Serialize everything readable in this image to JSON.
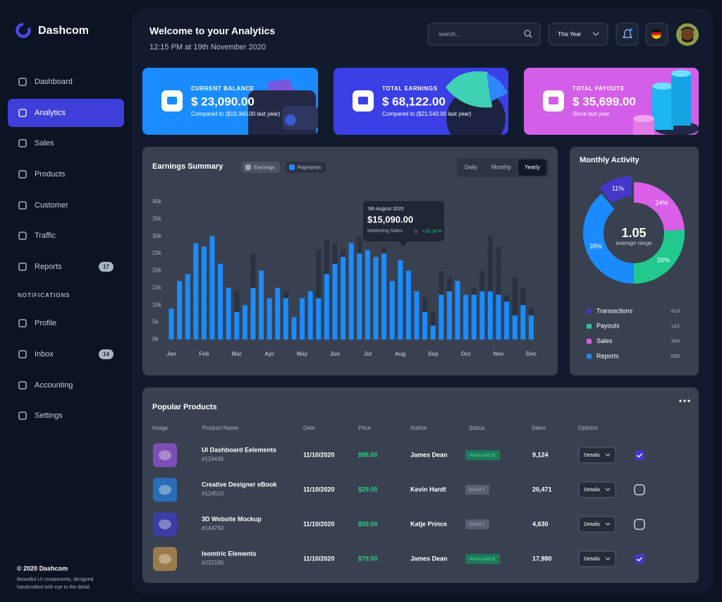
{
  "brand": "Dashcom",
  "nav": {
    "items": [
      {
        "label": "Dashboard"
      },
      {
        "label": "Analytics",
        "active": true
      },
      {
        "label": "Sales"
      },
      {
        "label": "Products"
      },
      {
        "label": "Customer"
      },
      {
        "label": "Traffic"
      },
      {
        "label": "Reports",
        "badge": 17
      }
    ],
    "section": "NOTIFICATIONS",
    "items2": [
      {
        "label": "Profile"
      },
      {
        "label": "Inbox",
        "badge": 14
      },
      {
        "label": "Accounting"
      },
      {
        "label": "Settings"
      }
    ]
  },
  "footer": {
    "title": "© 2020 Dashcom",
    "lines": [
      "Beautiful UI components, designed",
      "handcrafted with eye to the detail."
    ]
  },
  "header": {
    "title": "Welcome to your Analytics",
    "subtitle": "12:15 PM at 19th November 2020",
    "search_placeholder": "search...",
    "period": "This Year"
  },
  "cards": [
    {
      "label": "CURRENT BALANCE",
      "amount": "$ 23,090.00",
      "note": "Compared to ($19,340.00 last year)",
      "color": "#1b8cff"
    },
    {
      "label": "TOTAL EARNINGS",
      "amount": "$ 68,122.00",
      "note": "Compared to ($21,540.00 last year)",
      "color": "#3b3fe6"
    },
    {
      "label": "TOTAL PAYOUTS",
      "amount": "$ 35,699.00",
      "note": "Since last year",
      "color": "#d35ee8"
    }
  ],
  "chart_data": [
    {
      "type": "bar",
      "title": "Earnings Summary",
      "tabs": [
        "Daily",
        "Monthly",
        "Yearly"
      ],
      "active_tab": 2,
      "categories": [
        "Jan",
        null,
        null,
        null,
        "Feb",
        null,
        null,
        null,
        "Mar",
        null,
        null,
        null,
        "Apr",
        null,
        null,
        null,
        "May",
        null,
        null,
        null,
        "Jun",
        null,
        null,
        null,
        "Jul",
        null,
        null,
        null,
        "Aug",
        null,
        null,
        null,
        "Sep",
        null,
        null,
        null,
        "Oct",
        null,
        null,
        null,
        "Nov",
        null,
        null,
        null,
        "Dec"
      ],
      "series": [
        {
          "name": "Earnings",
          "color": "#2a3140",
          "values": [
            6000,
            12000,
            14000,
            20000,
            20000,
            22000,
            16000,
            10000,
            14000,
            10000,
            25000,
            16000,
            8000,
            10000,
            14000,
            5000,
            10000,
            14000,
            26000,
            29000,
            28000,
            26000,
            20000,
            30000,
            22000,
            20000,
            27000,
            14000,
            18000,
            19000,
            10000,
            12000,
            8000,
            20000,
            18000,
            12000,
            10000,
            15000,
            20000,
            30000,
            27000,
            13000,
            18000,
            15000,
            9000
          ]
        },
        {
          "name": "Payments",
          "color": "#1a8cff",
          "values": [
            9000,
            17000,
            19000,
            28000,
            27000,
            30000,
            22000,
            15000,
            8000,
            10000,
            15000,
            20000,
            12000,
            15000,
            12000,
            6500,
            12000,
            14000,
            12000,
            19000,
            22000,
            24000,
            28000,
            25000,
            26000,
            24000,
            25000,
            17000,
            23000,
            20000,
            14000,
            8000,
            4000,
            13000,
            14000,
            17000,
            13000,
            13000,
            14000,
            14000,
            13000,
            11000,
            7000,
            10000,
            7000
          ]
        }
      ],
      "ylim": [
        0,
        40000
      ],
      "yticks": [
        {
          "value": 0,
          "label": "0k"
        },
        {
          "value": 5000,
          "label": "5k"
        },
        {
          "value": 10000,
          "label": "10k"
        },
        {
          "value": 15000,
          "label": "15k"
        },
        {
          "value": 20000,
          "label": "20k"
        },
        {
          "value": 25000,
          "label": "25k"
        },
        {
          "value": 30000,
          "label": "30k"
        },
        {
          "value": 35000,
          "label": "35k"
        },
        {
          "value": 40000,
          "label": "40k"
        }
      ],
      "grid": true,
      "annotation": {
        "date": "5th August 2020",
        "value": "$15,090.00",
        "label": "Marketing Sales",
        "change": "+16,24 %"
      }
    },
    {
      "type": "pie",
      "title": "Monthly Activity",
      "center_value": 1.05,
      "center_label": "avarage range",
      "values": [
        24,
        26,
        39,
        11
      ],
      "value_labels": [
        "24%",
        "26%",
        "39%",
        "11%"
      ],
      "colors": [
        "#d95ee8",
        "#22c98e",
        "#1a8cff",
        "#4338ca"
      ],
      "explode": [
        false,
        false,
        false,
        true
      ],
      "legend": [
        {
          "name": "Transactions",
          "color": "#4338ca",
          "count": 410
        },
        {
          "name": "Payouts",
          "color": "#22c98e",
          "count": 142
        },
        {
          "name": "Sales",
          "color": "#d95ee8",
          "count": 340
        },
        {
          "name": "Reports",
          "color": "#1a8cff",
          "count": 590
        }
      ]
    }
  ],
  "products": {
    "title": "Popular Products",
    "columns": [
      "Image",
      "Product Name",
      "Date",
      "Price",
      "Author",
      "Status",
      "Sales",
      "Options"
    ],
    "rows": [
      {
        "name": "UI Dashboard Eelements",
        "id": "#124436",
        "date": "11/10/2020",
        "price": "$98.00",
        "author": "James Dean",
        "status": "AVAILABLE",
        "sales": "9,124",
        "option": "Details",
        "checked": true,
        "color": "#7b4fb3"
      },
      {
        "name": "Creative Designer eBook",
        "id": "#124510",
        "date": "11/10/2020",
        "price": "$29.00",
        "author": "Kevin Hardt",
        "status": "DARFT",
        "sales": "20,471",
        "option": "Details",
        "checked": false,
        "color": "#2a6cb5"
      },
      {
        "name": "3D Website Mockup",
        "id": "#144750",
        "date": "11/10/2020",
        "price": "$59.00",
        "author": "Katje Prince",
        "status": "DARFT",
        "sales": "4,630",
        "option": "Details",
        "checked": false,
        "color": "#3c3ca6"
      },
      {
        "name": "Isomtric Elements",
        "id": "#232190",
        "date": "11/10/2020",
        "price": "$79.00",
        "author": "James Dean",
        "status": "AVAILABLE",
        "sales": "17,980",
        "option": "Details",
        "checked": true,
        "color": "#9b7b4b"
      }
    ]
  }
}
